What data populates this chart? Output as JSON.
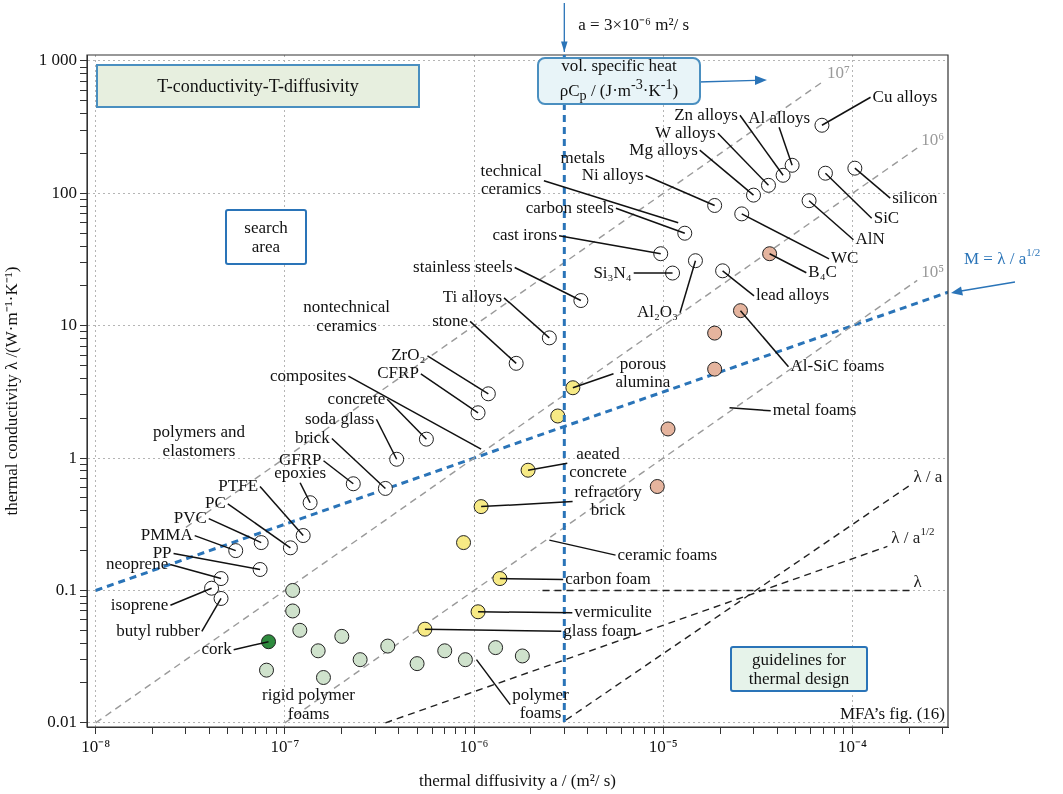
{
  "chart_data": {
    "type": "scatter",
    "title": "T-conductivity-T-diffusivity",
    "xlabel": "thermal diffusivity a / (m²/ s)",
    "ylabel": "thermal conductivity λ /(W·m⁻¹·K⁻¹)",
    "log": "xy",
    "grid": true,
    "legend": false,
    "xlim": [
      9.4e-09,
      0.00032
    ],
    "ylim": [
      0.0093,
      1110
    ],
    "xticks": [
      {
        "value": 1e-08,
        "label": "10⁻⁸"
      },
      {
        "value": 2e-08,
        "label": null
      },
      {
        "value": 3e-08,
        "label": null
      },
      {
        "value": 4e-08,
        "label": null
      },
      {
        "value": 5e-08,
        "label": null
      },
      {
        "value": 6e-08,
        "label": null
      },
      {
        "value": 7e-08,
        "label": null
      },
      {
        "value": 8e-08,
        "label": null
      },
      {
        "value": 9e-08,
        "label": null
      },
      {
        "value": 1e-07,
        "label": "10⁻⁷"
      },
      {
        "value": 2e-07,
        "label": null
      },
      {
        "value": 3e-07,
        "label": null
      },
      {
        "value": 4e-07,
        "label": null
      },
      {
        "value": 5e-07,
        "label": null
      },
      {
        "value": 6e-07,
        "label": null
      },
      {
        "value": 7e-07,
        "label": null
      },
      {
        "value": 8e-07,
        "label": null
      },
      {
        "value": 9e-07,
        "label": null
      },
      {
        "value": 1e-06,
        "label": "10⁻⁶"
      },
      {
        "value": 2e-06,
        "label": null
      },
      {
        "value": 3e-06,
        "label": null
      },
      {
        "value": 4e-06,
        "label": null
      },
      {
        "value": 5e-06,
        "label": null
      },
      {
        "value": 6e-06,
        "label": null
      },
      {
        "value": 7e-06,
        "label": null
      },
      {
        "value": 8e-06,
        "label": null
      },
      {
        "value": 9e-06,
        "label": null
      },
      {
        "value": 1e-05,
        "label": "10⁻⁵"
      },
      {
        "value": 2e-05,
        "label": null
      },
      {
        "value": 3e-05,
        "label": null
      },
      {
        "value": 4e-05,
        "label": null
      },
      {
        "value": 5e-05,
        "label": null
      },
      {
        "value": 6e-05,
        "label": null
      },
      {
        "value": 7e-05,
        "label": null
      },
      {
        "value": 8e-05,
        "label": null
      },
      {
        "value": 9e-05,
        "label": null
      },
      {
        "value": 0.0001,
        "label": "10⁻⁴"
      },
      {
        "value": 0.0002,
        "label": null
      },
      {
        "value": 0.0003,
        "label": null
      }
    ],
    "yticks": [
      0.01,
      {
        "value": 0.02,
        "label": null
      },
      {
        "value": 0.03,
        "label": null
      },
      {
        "value": 0.04,
        "label": null
      },
      {
        "value": 0.05,
        "label": null
      },
      {
        "value": 0.06,
        "label": null
      },
      {
        "value": 0.07,
        "label": null
      },
      {
        "value": 0.08,
        "label": null
      },
      {
        "value": 0.09,
        "label": null
      },
      0.1,
      {
        "value": 0.2,
        "label": null
      },
      {
        "value": 0.3,
        "label": null
      },
      {
        "value": 0.4,
        "label": null
      },
      {
        "value": 0.5,
        "label": null
      },
      {
        "value": 0.6,
        "label": null
      },
      {
        "value": 0.7,
        "label": null
      },
      {
        "value": 0.8,
        "label": null
      },
      {
        "value": 0.9,
        "label": null
      },
      1,
      {
        "value": 2,
        "label": null
      },
      {
        "value": 3,
        "label": null
      },
      {
        "value": 4,
        "label": null
      },
      {
        "value": 5,
        "label": null
      },
      {
        "value": 6,
        "label": null
      },
      {
        "value": 7,
        "label": null
      },
      {
        "value": 8,
        "label": null
      },
      {
        "value": 9,
        "label": null
      },
      10,
      {
        "value": 20,
        "label": null
      },
      {
        "value": 30,
        "label": null
      },
      {
        "value": 40,
        "label": null
      },
      {
        "value": 50,
        "label": null
      },
      {
        "value": 60,
        "label": null
      },
      {
        "value": 70,
        "label": null
      },
      {
        "value": 80,
        "label": null
      },
      {
        "value": 90,
        "label": null
      },
      100,
      {
        "value": 200,
        "label": null
      },
      {
        "value": 300,
        "label": null
      },
      {
        "value": 400,
        "label": null
      },
      {
        "value": 500,
        "label": null
      },
      {
        "value": 600,
        "label": null
      },
      {
        "value": 700,
        "label": null
      },
      {
        "value": 800,
        "label": null
      },
      {
        "value": 900,
        "label": null
      },
      {
        "value": 1000,
        "label": "1 000"
      }
    ],
    "series": [
      {
        "type": "line",
        "name": "10⁷",
        "color": "#9a9a9a",
        "line_style": "dashed",
        "x": [
          3e-08,
          7e-05
        ],
        "values": [
          0.3,
          700
        ]
      },
      {
        "type": "line",
        "name": "10⁶",
        "color": "#9a9a9a",
        "line_style": "dashed",
        "x": [
          1e-08,
          0.00022
        ],
        "values": [
          0.01,
          220
        ]
      },
      {
        "type": "line",
        "name": "10⁵",
        "color": "#9a9a9a",
        "line_style": "dashed",
        "x": [
          1e-07,
          0.00022
        ],
        "values": [
          0.01,
          22
        ]
      },
      {
        "type": "line",
        "name": "λ / a",
        "color": "#222222",
        "line_style": "dashed",
        "x": [
          3.06e-06,
          0.0002
        ],
        "values": [
          0.0105,
          0.62
        ]
      },
      {
        "type": "line",
        "name": "λ / a$^{1/2}$",
        "color": "#222222",
        "line_style": "dashed",
        "x": [
          3.4e-07,
          0.000153
        ],
        "values": [
          0.01,
          0.215
        ]
      },
      {
        "type": "line",
        "name": "λ",
        "color": "#222222",
        "line_style": "dashed",
        "x": [
          2.3e-06,
          0.0002
        ],
        "values": [
          0.1,
          0.1
        ]
      },
      {
        "type": "scatter",
        "x": [
          6.9e-05,
          4.8e-05,
          4.3e-05,
          3.6e-05,
          3e-05,
          1.87e-05,
          1.3e-05,
          9.7e-06,
          1.12e-05,
          1.48e-05,
          2.6e-05,
          5.9e-05,
          7.2e-05,
          0.000103,
          3.65e-05,
          2.06e-05,
          2.56e-05,
          1.87e-05,
          1.87e-05,
          1.06e-05,
          9.3e-06,
          3.67e-06,
          2.5e-06,
          1.67e-06,
          1.19e-06,
          1.05e-06,
          5.6e-07,
          3.9e-07,
          3.4e-07,
          2.3e-07,
          1.36e-07,
          1.25e-07,
          1.07e-07,
          7.5e-08,
          5.5e-08,
          7.4e-08,
          4.6e-08,
          4.1e-08,
          4.6e-08,
          8.2e-08,
          5.5e-07,
          1.05e-06,
          1.37e-06,
          1.09e-06,
          8.8e-07,
          1.93e-06,
          3.33e-06,
          2.77e-06,
          1.1e-07,
          1.1e-07,
          1.2e-07,
          1.5e-07,
          2e-07,
          2.5e-07,
          3.5e-07,
          5e-07,
          7e-07,
          9e-07,
          1.3e-06,
          1.8e-06,
          8e-08,
          1.6e-07
        ],
        "values": [
          327,
          163,
          137,
          115,
          97,
          81,
          50,
          35,
          25,
          31,
          70,
          88,
          142,
          155,
          35,
          26,
          13,
          8.8,
          4.7,
          1.66,
          0.61,
          15.5,
          8.1,
          5.2,
          3.06,
          2.2,
          1.39,
          0.98,
          0.59,
          0.64,
          0.46,
          0.26,
          0.21,
          0.23,
          0.2,
          0.144,
          0.123,
          0.104,
          0.087,
          0.041,
          0.051,
          0.069,
          0.123,
          0.43,
          0.23,
          0.81,
          3.4,
          2.08,
          0.1,
          0.07,
          0.05,
          0.035,
          0.045,
          0.03,
          0.038,
          0.028,
          0.035,
          0.03,
          0.037,
          0.032,
          0.025,
          0.022
        ],
        "colors": [
          "#ffffff",
          "#ffffff",
          "#ffffff",
          "#ffffff",
          "#ffffff",
          "#ffffff",
          "#ffffff",
          "#ffffff",
          "#ffffff",
          "#ffffff",
          "#ffffff",
          "#ffffff",
          "#ffffff",
          "#ffffff",
          "#e5b49e",
          "#ffffff",
          "#e5b49e",
          "#e5b49e",
          "#e5b49e",
          "#e5b49e",
          "#e5b49e",
          "#ffffff",
          "#ffffff",
          "#ffffff",
          "#ffffff",
          "#ffffff",
          "#ffffff",
          "#ffffff",
          "#ffffff",
          "#ffffff",
          "#ffffff",
          "#ffffff",
          "#ffffff",
          "#ffffff",
          "#ffffff",
          "#ffffff",
          "#ffffff",
          "#ffffff",
          "#ffffff",
          "#2e8b3e",
          "#f7ea85",
          "#f7ea85",
          "#f7ea85",
          "#f7ea85",
          "#f7ea85",
          "#f7ea85",
          "#f7ea85",
          "#f7ea85",
          "#cfe2cc",
          "#cfe2cc",
          "#cfe2cc",
          "#cfe2cc",
          "#cfe2cc",
          "#cfe2cc",
          "#cfe2cc",
          "#cfe2cc",
          "#cfe2cc",
          "#cfe2cc",
          "#cfe2cc",
          "#cfe2cc",
          "#cfe2cc",
          "#cfe2cc"
        ]
      },
      {
        "type": "line",
        "name": "M = λ / a$^{1/2}$",
        "color": "#2a74b8",
        "line_style": "dashed",
        "x": [
          1e-08,
          0.00032
        ],
        "values": [
          0.1,
          17.9
        ]
      }
    ],
    "ref_lines": [
      {
        "axis": "x",
        "value": 3e-06,
        "label": "a = 3×10⁻⁶ m²/ s",
        "color": "#2a74b8",
        "line_style": "dashed"
      }
    ],
    "annotations": [
      {
        "text": "Cu alloys",
        "x": 6.9e-05,
        "y": 327
      },
      {
        "text": "Al alloys",
        "x": 4.8e-05,
        "y": 163
      },
      {
        "text": "Zn alloys",
        "x": 4.3e-05,
        "y": 137
      },
      {
        "text": "W alloys",
        "x": 3.6e-05,
        "y": 115
      },
      {
        "text": "Mg alloys",
        "x": 3e-05,
        "y": 97
      },
      {
        "text": "Ni alloys",
        "x": 1.87e-05,
        "y": 81
      },
      {
        "text": "technical\nceramics",
        "x": 1.2e-05,
        "y": 60
      },
      {
        "text": "carbon steels",
        "x": 1.3e-05,
        "y": 50
      },
      {
        "text": "cast irons",
        "x": 9.7e-06,
        "y": 35
      },
      {
        "text": "Si₃N₄",
        "x": 1.12e-05,
        "y": 25
      },
      {
        "text": "Al₂O₃",
        "x": 1.48e-05,
        "y": 31
      },
      {
        "text": "WC",
        "x": 2.6e-05,
        "y": 70
      },
      {
        "text": "AlN",
        "x": 5.9e-05,
        "y": 88
      },
      {
        "text": "SiC",
        "x": 7.2e-05,
        "y": 142
      },
      {
        "text": "silicon",
        "x": 0.000103,
        "y": 155
      },
      {
        "text": "B₄C",
        "x": 3.65e-05,
        "y": 35
      },
      {
        "text": "lead alloys",
        "x": 2.06e-05,
        "y": 26
      },
      {
        "text": "Al-SiC foams",
        "x": 2.56e-05,
        "y": 13
      },
      {
        "text": "metal foams",
        "x": 2.24e-05,
        "y": 2.4
      },
      {
        "text": "stainless steels",
        "x": 3.67e-06,
        "y": 15.5
      },
      {
        "text": "Ti alloys",
        "x": 2.5e-06,
        "y": 8.1
      },
      {
        "text": "stone",
        "x": 1.67e-06,
        "y": 5.2
      },
      {
        "text": "ZrO₂",
        "x": 1.19e-06,
        "y": 3.06
      },
      {
        "text": "CFRP",
        "x": 1.05e-06,
        "y": 2.2
      },
      {
        "text": "composites",
        "x": 1.09e-06,
        "y": 1.17
      },
      {
        "text": "concrete",
        "x": 5.6e-07,
        "y": 1.39
      },
      {
        "text": "soda glass",
        "x": 3.9e-07,
        "y": 0.98
      },
      {
        "text": "brick",
        "x": 3.4e-07,
        "y": 0.59
      },
      {
        "text": "GFRP",
        "x": 2.3e-07,
        "y": 0.64
      },
      {
        "text": "epoxies",
        "x": 1.36e-07,
        "y": 0.46
      },
      {
        "text": "PTFE",
        "x": 1.25e-07,
        "y": 0.26
      },
      {
        "text": "PC",
        "x": 1.07e-07,
        "y": 0.21
      },
      {
        "text": "PVC",
        "x": 7.5e-08,
        "y": 0.23
      },
      {
        "text": "PMMA",
        "x": 5.5e-08,
        "y": 0.2
      },
      {
        "text": "PP",
        "x": 7.4e-08,
        "y": 0.144
      },
      {
        "text": "neoprene",
        "x": 4.6e-08,
        "y": 0.123
      },
      {
        "text": "isoprene",
        "x": 4.1e-08,
        "y": 0.104
      },
      {
        "text": "butyl rubber",
        "x": 4.6e-08,
        "y": 0.087
      },
      {
        "text": "cork",
        "x": 8.2e-08,
        "y": 0.041
      },
      {
        "text": "polymer\nfoams",
        "x": 1.03e-06,
        "y": 0.03
      },
      {
        "text": "glass foam",
        "x": 5.5e-07,
        "y": 0.051
      },
      {
        "text": "vermiculite",
        "x": 1.05e-06,
        "y": 0.069
      },
      {
        "text": "carbon foam",
        "x": 1.37e-06,
        "y": 0.123
      },
      {
        "text": "ceramic foams",
        "x": 2.5e-06,
        "y": 0.24
      },
      {
        "text": "refractory\nbrick",
        "x": 1.09e-06,
        "y": 0.43
      },
      {
        "text": "aeated\nconcrete",
        "x": 1.93e-06,
        "y": 0.81
      },
      {
        "text": "porous\nalumina",
        "x": 3.33e-06,
        "y": 3.4
      },
      "search\narea",
      "vol. specific heat\nρC$_{p}$ / (J·m$^{-3}$·K$^{-1}$)",
      "guidelines for\nthermal design",
      "MFA’s fig. (16)",
      "metals",
      "nontechnical\nceramics",
      "polymers and\nelastomers",
      "rigid polymer\nfoams"
    ]
  }
}
